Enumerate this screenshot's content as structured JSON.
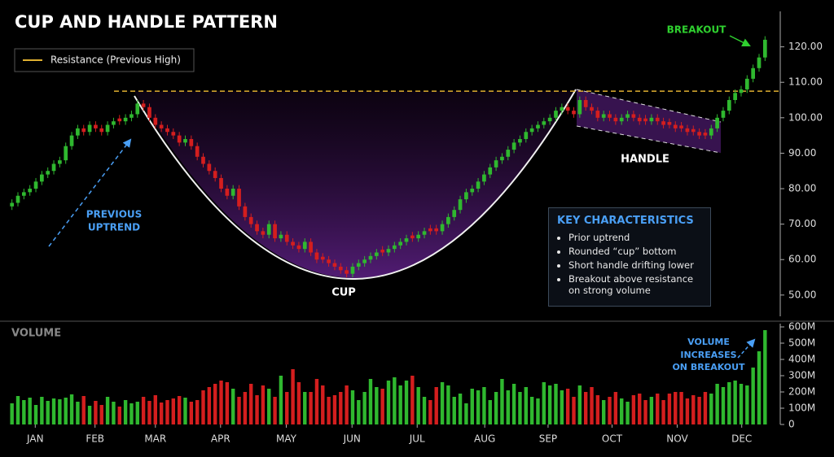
{
  "chart_data": {
    "type": "candlestick",
    "title": "CUP AND HANDLE PATTERN",
    "xlim": [
      -0.5,
      126.5
    ],
    "xticks": [
      {
        "value": 3.9,
        "label": "JAN"
      },
      {
        "value": 13.9,
        "label": "FEB"
      },
      {
        "value": 24.0,
        "label": "MAR"
      },
      {
        "value": 34.9,
        "label": "APR"
      },
      {
        "value": 45.9,
        "label": "MAY"
      },
      {
        "value": 56.9,
        "label": "JUN"
      },
      {
        "value": 67.8,
        "label": "JUL"
      },
      {
        "value": 79.1,
        "label": "AUG"
      },
      {
        "value": 89.7,
        "label": "SEP"
      },
      {
        "value": 100.4,
        "label": "OCT"
      },
      {
        "value": 111.3,
        "label": "NOV"
      },
      {
        "value": 122.1,
        "label": "DEC"
      }
    ],
    "ylim": [
      44,
      130
    ],
    "yticks": [
      {
        "value": 50,
        "label": "50.00"
      },
      {
        "value": 60,
        "label": "60.00"
      },
      {
        "value": 70,
        "label": "70.00"
      },
      {
        "value": 80,
        "label": "80.00"
      },
      {
        "value": 90,
        "label": "90.00"
      },
      {
        "value": 100,
        "label": "100.00"
      },
      {
        "value": 110,
        "label": "110.00"
      },
      {
        "value": 120,
        "label": "120.00"
      }
    ],
    "up_color": "#2fb82f",
    "down_color": "#d41e1e",
    "open": [
      75,
      76,
      78,
      79,
      80,
      82,
      84,
      85,
      87,
      88,
      92,
      95,
      97,
      96,
      98,
      97,
      96,
      98,
      99.8,
      99,
      100,
      101,
      104,
      103,
      100,
      98,
      97,
      96,
      95,
      93,
      94,
      92,
      89,
      87,
      85,
      83,
      80,
      78,
      80,
      75,
      72,
      70,
      68,
      67,
      70,
      66,
      67,
      65,
      64,
      63,
      65,
      62,
      60.8,
      60,
      59,
      58,
      57,
      56,
      58,
      59,
      60,
      61,
      62.8,
      62,
      63,
      64,
      65,
      66.8,
      66,
      67,
      68.8,
      68.8,
      68,
      70,
      72,
      74,
      77,
      79,
      80,
      82,
      84,
      86,
      88,
      89,
      91,
      93,
      94,
      96,
      97,
      98,
      99,
      100,
      102,
      103,
      102,
      101,
      105,
      103,
      102,
      100,
      101,
      100,
      99,
      100,
      101,
      100,
      99.8,
      99,
      100,
      99,
      98.8,
      98,
      97.8,
      97,
      96.8,
      96,
      95.8,
      95,
      97,
      100,
      102,
      105,
      107,
      108,
      111,
      114,
      117
    ],
    "high": [
      77,
      79,
      80,
      81,
      83,
      85,
      86,
      88,
      89,
      93,
      96,
      98,
      98,
      99,
      99,
      98,
      99,
      100,
      100.8,
      101,
      102,
      105,
      105,
      104,
      101,
      99,
      98,
      97,
      96,
      95,
      95,
      93,
      90,
      88,
      86,
      84,
      81,
      81,
      81,
      76,
      73,
      71,
      69,
      71,
      71,
      68,
      68,
      66,
      65,
      66,
      66,
      63,
      61.8,
      61,
      60,
      59,
      58,
      59,
      60,
      61,
      62,
      63,
      63.8,
      64,
      65,
      66,
      67,
      67.8,
      68,
      69,
      69.8,
      69.8,
      71,
      73,
      75,
      78,
      80,
      81,
      83,
      85,
      87,
      89,
      90,
      92,
      94,
      95,
      97,
      98,
      99,
      100,
      101,
      103,
      104,
      104,
      103,
      106,
      106,
      104,
      103,
      102,
      102,
      101,
      101,
      102,
      102,
      101,
      100.8,
      101,
      101,
      100,
      99.8,
      99,
      98.8,
      98,
      97.8,
      97,
      96.8,
      98,
      101,
      103,
      106,
      108,
      109,
      112,
      115,
      118,
      123
    ],
    "low": [
      74,
      75,
      77,
      78,
      79,
      81,
      83,
      84,
      86,
      87,
      91,
      94,
      95,
      95,
      96,
      95,
      95,
      97,
      98,
      98,
      99,
      100,
      102,
      99,
      97,
      96,
      95,
      94,
      92,
      92,
      91,
      88,
      86,
      84,
      82,
      79,
      77,
      77,
      74,
      71,
      69,
      67,
      66,
      66,
      65,
      65,
      64,
      63,
      62,
      62,
      61,
      59,
      59,
      58,
      57,
      56,
      55,
      55,
      57,
      58,
      59,
      60,
      61,
      61,
      62,
      63,
      64,
      65,
      65,
      66,
      67,
      67,
      67,
      69,
      71,
      73,
      76,
      78,
      79,
      81,
      83,
      85,
      87,
      88,
      90,
      92,
      93,
      95,
      96,
      97,
      98,
      99,
      101,
      101,
      100,
      100,
      102,
      101,
      99,
      99,
      99,
      98,
      98,
      99,
      99,
      98,
      98,
      98,
      98,
      97,
      97,
      96,
      96,
      95,
      95,
      94,
      94,
      94,
      96,
      99,
      101,
      104,
      106,
      107,
      110,
      113,
      116
    ],
    "close": [
      76,
      78,
      79,
      80,
      82,
      84,
      85,
      87,
      88,
      92,
      95,
      97,
      96,
      98,
      97,
      96,
      98,
      99,
      99,
      100,
      101,
      104,
      103,
      100,
      98,
      97,
      96,
      95,
      93,
      94,
      92,
      89,
      87,
      85,
      83,
      80,
      78,
      80,
      75,
      72,
      70,
      68,
      67,
      70,
      66,
      67,
      65,
      64,
      63,
      65,
      62,
      60,
      60,
      59,
      58,
      57,
      56,
      58,
      59,
      60,
      61,
      62,
      62,
      63,
      64,
      65,
      66,
      66,
      67,
      68,
      68,
      68,
      70,
      72,
      74,
      77,
      79,
      80,
      82,
      84,
      86,
      88,
      89,
      91,
      93,
      94,
      96,
      97,
      98,
      99,
      100,
      102,
      103,
      102,
      101,
      105,
      103,
      102,
      100,
      101,
      100,
      99,
      100,
      101,
      100,
      99,
      99,
      100,
      99,
      98,
      98,
      97,
      97,
      96,
      96,
      95,
      95,
      97,
      100,
      102,
      105,
      107,
      108,
      111,
      114,
      117,
      122
    ],
    "resistance": {
      "name": "Resistance (Previous High)",
      "value": 107.5,
      "color": "#e0b030"
    },
    "volume": {
      "title": "VOLUME",
      "ylim": [
        0,
        620
      ],
      "yticks": [
        0,
        {
          "value": 100,
          "label": "100M"
        },
        {
          "value": 200,
          "label": "200M"
        },
        {
          "value": 300,
          "label": "300M"
        },
        {
          "value": 400,
          "label": "400M"
        },
        {
          "value": 500,
          "label": "500M"
        },
        {
          "value": 600,
          "label": "600M"
        }
      ],
      "values": [
        130,
        175,
        150,
        165,
        120,
        170,
        145,
        160,
        155,
        165,
        185,
        140,
        175,
        115,
        145,
        120,
        170,
        140,
        110,
        150,
        130,
        140,
        170,
        145,
        180,
        135,
        150,
        160,
        175,
        165,
        140,
        150,
        210,
        230,
        250,
        270,
        260,
        220,
        170,
        200,
        250,
        180,
        240,
        220,
        170,
        300,
        200,
        340,
        260,
        200,
        200,
        280,
        240,
        170,
        180,
        200,
        240,
        210,
        150,
        200,
        280,
        230,
        220,
        270,
        290,
        240,
        270,
        300,
        230,
        170,
        150,
        230,
        260,
        240,
        170,
        190,
        130,
        220,
        210,
        230,
        150,
        200,
        280,
        210,
        250,
        200,
        230,
        170,
        160,
        260,
        240,
        250,
        210,
        220,
        170,
        240,
        200,
        230,
        180,
        150,
        170,
        200,
        160,
        140,
        180,
        190,
        150,
        170,
        190,
        150,
        190,
        200,
        200,
        160,
        180,
        170,
        200,
        190,
        250,
        230,
        260,
        270,
        250,
        240,
        350,
        450,
        580
      ]
    },
    "annotations": {
      "previous_uptrend": [
        "PREVIOUS",
        "UPTREND"
      ],
      "cup": "CUP",
      "handle": "HANDLE",
      "breakout": "BREAKOUT",
      "volume_note": [
        "VOLUME",
        "INCREASES",
        "ON BREAKOUT"
      ]
    },
    "key": {
      "title": "KEY CHARACTERISTICS",
      "items": [
        "Prior uptrend",
        "Rounded “cup” bottom",
        "Short handle drifting lower",
        "Breakout above resistance on strong volume"
      ]
    }
  }
}
